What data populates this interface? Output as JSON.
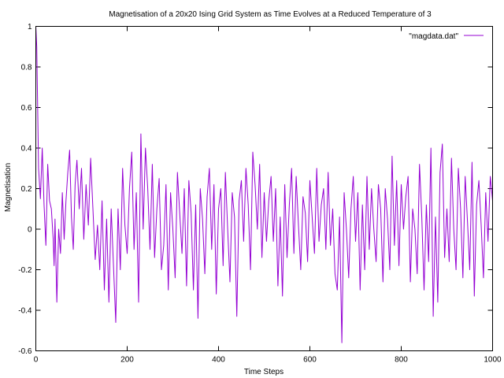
{
  "chart_data": {
    "type": "line",
    "title": "Magnetisation of a 20x20 Ising Grid System as Time Evolves at a Reduced Temperature of 3",
    "xlabel": "Time Steps",
    "ylabel": "Magnetisation",
    "xlim": [
      0,
      1000
    ],
    "ylim": [
      -0.6,
      1
    ],
    "xticks": [
      0,
      200,
      400,
      600,
      800,
      1000
    ],
    "xtick_labels": [
      "0",
      "200",
      "400",
      "600",
      "800",
      "1000"
    ],
    "yticks": [
      -0.6,
      -0.4,
      -0.2,
      0,
      0.2,
      0.4,
      0.6,
      0.8,
      1
    ],
    "ytick_labels": [
      "-0.6",
      "-0.4",
      "-0.2",
      "0",
      "0.2",
      "0.4",
      "0.6",
      "0.8",
      "1"
    ],
    "grid": false,
    "legend_position": "top-right",
    "series": [
      {
        "name": "\"magdata.dat\"",
        "color": "#9400d3",
        "x": [
          0,
          2,
          4,
          6,
          10,
          14,
          18,
          22,
          26,
          30,
          34,
          38,
          40,
          42,
          46,
          50,
          54,
          58,
          62,
          66,
          70,
          74,
          78,
          82,
          86,
          90,
          95,
          100,
          105,
          110,
          115,
          120,
          125,
          130,
          135,
          140,
          145,
          150,
          155,
          160,
          165,
          170,
          175,
          180,
          185,
          190,
          195,
          200,
          205,
          210,
          215,
          220,
          225,
          230,
          235,
          240,
          245,
          250,
          255,
          260,
          265,
          270,
          275,
          280,
          285,
          290,
          295,
          300,
          305,
          310,
          315,
          320,
          325,
          330,
          335,
          340,
          345,
          350,
          355,
          360,
          365,
          370,
          375,
          380,
          385,
          390,
          395,
          400,
          405,
          410,
          415,
          420,
          425,
          430,
          435,
          440,
          445,
          450,
          455,
          460,
          465,
          470,
          475,
          480,
          485,
          490,
          495,
          500,
          505,
          510,
          515,
          520,
          525,
          530,
          535,
          540,
          545,
          550,
          555,
          560,
          565,
          570,
          575,
          580,
          585,
          590,
          595,
          600,
          605,
          610,
          615,
          620,
          625,
          630,
          635,
          640,
          645,
          650,
          655,
          660,
          665,
          670,
          675,
          680,
          685,
          690,
          695,
          700,
          705,
          710,
          715,
          720,
          725,
          730,
          735,
          740,
          745,
          750,
          755,
          760,
          765,
          770,
          775,
          780,
          785,
          790,
          795,
          800,
          805,
          810,
          815,
          820,
          825,
          830,
          835,
          840,
          845,
          850,
          855,
          860,
          865,
          870,
          875,
          880,
          885,
          890,
          895,
          900,
          905,
          910,
          915,
          920,
          925,
          930,
          935,
          940,
          945,
          950,
          955,
          960,
          965,
          970,
          975,
          980,
          985,
          990,
          995,
          1000
        ],
        "y": [
          1.0,
          0.9,
          0.6,
          0.3,
          0.15,
          0.4,
          0.12,
          -0.08,
          0.32,
          0.14,
          0.1,
          -0.05,
          -0.18,
          0.05,
          -0.36,
          0.0,
          -0.12,
          0.18,
          -0.05,
          0.14,
          0.28,
          0.39,
          0.06,
          -0.1,
          0.22,
          0.34,
          0.1,
          0.3,
          -0.05,
          0.22,
          0.02,
          0.35,
          0.1,
          -0.15,
          0.02,
          -0.2,
          0.14,
          -0.3,
          0.05,
          -0.36,
          0.1,
          -0.18,
          -0.46,
          0.1,
          -0.2,
          0.3,
          0.02,
          -0.12,
          0.2,
          0.38,
          -0.1,
          0.18,
          -0.36,
          0.47,
          0.0,
          0.4,
          0.2,
          -0.1,
          0.32,
          -0.14,
          0.1,
          0.25,
          -0.2,
          -0.08,
          0.22,
          -0.3,
          0.18,
          0.0,
          -0.24,
          0.28,
          0.08,
          -0.12,
          0.2,
          -0.28,
          0.24,
          0.08,
          -0.3,
          0.12,
          -0.44,
          0.2,
          0.05,
          -0.22,
          0.16,
          0.3,
          -0.1,
          0.22,
          -0.32,
          0.1,
          0.2,
          -0.18,
          0.28,
          0.0,
          -0.26,
          0.18,
          0.06,
          -0.43,
          0.14,
          0.24,
          -0.06,
          0.3,
          0.12,
          -0.2,
          0.38,
          0.22,
          0.0,
          0.32,
          -0.14,
          0.18,
          -0.06,
          0.14,
          0.26,
          -0.06,
          0.2,
          -0.28,
          0.06,
          -0.33,
          0.22,
          -0.14,
          0.12,
          0.3,
          -0.12,
          0.26,
          0.02,
          -0.2,
          0.16,
          0.08,
          -0.16,
          0.24,
          0.06,
          -0.12,
          0.3,
          -0.06,
          0.12,
          0.2,
          -0.1,
          0.28,
          -0.08,
          0.1,
          -0.22,
          -0.3,
          0.06,
          -0.56,
          0.18,
          0.0,
          -0.24,
          0.1,
          0.26,
          -0.06,
          0.18,
          -0.3,
          0.12,
          -0.2,
          0.26,
          -0.1,
          0.2,
          0.0,
          -0.16,
          0.22,
          0.1,
          -0.26,
          0.2,
          0.05,
          -0.2,
          0.36,
          -0.08,
          0.24,
          -0.18,
          0.22,
          0.0,
          0.16,
          0.26,
          -0.26,
          0.1,
          0.0,
          -0.22,
          0.32,
          0.06,
          -0.3,
          0.12,
          -0.16,
          0.4,
          -0.43,
          0.06,
          -0.36,
          0.28,
          0.42,
          -0.14,
          0.1,
          -0.16,
          0.35,
          0.0,
          -0.2,
          0.3,
          0.1,
          -0.24,
          0.26,
          0.04,
          -0.2,
          0.33,
          -0.33,
          0.12,
          0.24,
          0.02,
          -0.24,
          0.18,
          -0.06,
          0.26,
          0.14
        ]
      }
    ]
  }
}
